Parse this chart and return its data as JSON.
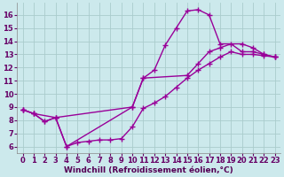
{
  "background_color": "#cce9ec",
  "grid_color": "#aacccc",
  "line_color": "#990099",
  "marker": "+",
  "markersize": 4,
  "linewidth": 1.0,
  "xlabel": "Windchill (Refroidissement éolien,°C)",
  "xlabel_fontsize": 6.5,
  "xlim": [
    -0.5,
    23.5
  ],
  "ylim": [
    5.5,
    16.9
  ],
  "xticks": [
    0,
    1,
    2,
    3,
    4,
    5,
    6,
    7,
    8,
    9,
    10,
    11,
    12,
    13,
    14,
    15,
    16,
    17,
    18,
    19,
    20,
    21,
    22,
    23
  ],
  "yticks": [
    6,
    7,
    8,
    9,
    10,
    11,
    12,
    13,
    14,
    15,
    16
  ],
  "tick_fontsize": 6,
  "series1_x": [
    0,
    1,
    2,
    3,
    4,
    5,
    6,
    7,
    8,
    9,
    10,
    11,
    12,
    13,
    14,
    15,
    16,
    17,
    18,
    19,
    20,
    21,
    22,
    23
  ],
  "series1_y": [
    8.8,
    8.5,
    7.9,
    8.2,
    6.0,
    6.3,
    6.4,
    6.5,
    6.5,
    6.6,
    7.5,
    8.9,
    9.3,
    9.8,
    10.5,
    11.2,
    11.8,
    12.3,
    12.8,
    13.2,
    13.0,
    13.0,
    12.9,
    12.8
  ],
  "series2_x": [
    0,
    1,
    3,
    4,
    10,
    11,
    12,
    13,
    14,
    15,
    16,
    17,
    18,
    20,
    21,
    22,
    23
  ],
  "series2_y": [
    8.8,
    8.5,
    8.2,
    6.0,
    9.0,
    11.2,
    11.8,
    13.7,
    15.0,
    16.3,
    16.4,
    16.0,
    13.8,
    13.8,
    13.5,
    13.0,
    12.8
  ],
  "series3_x": [
    0,
    1,
    2,
    3,
    10,
    11,
    15,
    16,
    17,
    18,
    19,
    20,
    21,
    22,
    23
  ],
  "series3_y": [
    8.8,
    8.5,
    7.9,
    8.2,
    9.0,
    11.2,
    11.4,
    12.3,
    13.2,
    13.5,
    13.8,
    13.2,
    13.2,
    13.0,
    12.8
  ]
}
